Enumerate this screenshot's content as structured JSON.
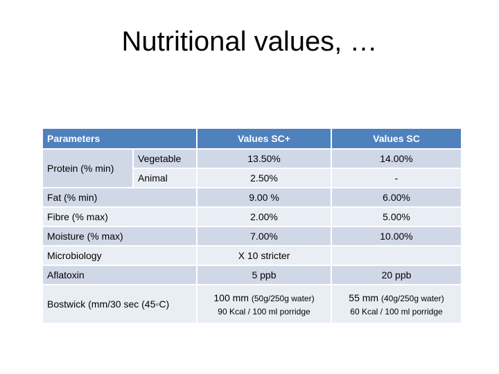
{
  "title": "Nutritional values, …",
  "headers": {
    "parameters": "Parameters",
    "sc_plus": "Values SC+",
    "sc": "Values SC"
  },
  "protein": {
    "label": "Protein (% min)",
    "vegetable": {
      "label": "Vegetable",
      "sc_plus": "13.50%",
      "sc": "14.00%"
    },
    "animal": {
      "label": "Animal",
      "sc_plus": "2.50%",
      "sc": "-"
    }
  },
  "rows": {
    "fat": {
      "label": "Fat (% min)",
      "sc_plus": "9.00 %",
      "sc": "6.00%"
    },
    "fibre": {
      "label": "Fibre (% max)",
      "sc_plus": "2.00%",
      "sc": "5.00%"
    },
    "moisture": {
      "label": "Moisture (% max)",
      "sc_plus": "7.00%",
      "sc": "10.00%"
    },
    "microbiology": {
      "label": "Microbiology",
      "sc_plus": "X 10 stricter",
      "sc": ""
    },
    "aflatoxin": {
      "label": "Aflatoxin",
      "sc_plus": "5 ppb",
      "sc": "20 ppb"
    }
  },
  "bostwick": {
    "label": "Bostwick (mm/30 sec (45◦C)",
    "sc_plus": {
      "value": "100 mm",
      "detail": "(50g/250g water)",
      "energy": "90 Kcal / 100 ml porridge"
    },
    "sc": {
      "value": "55 mm",
      "detail": "(40g/250g water)",
      "energy": "60 Kcal / 100 ml porridge"
    }
  },
  "colors": {
    "header_bg": "#4f81bd",
    "row_dark": "#d0d8e8",
    "row_light": "#e9edf4"
  }
}
